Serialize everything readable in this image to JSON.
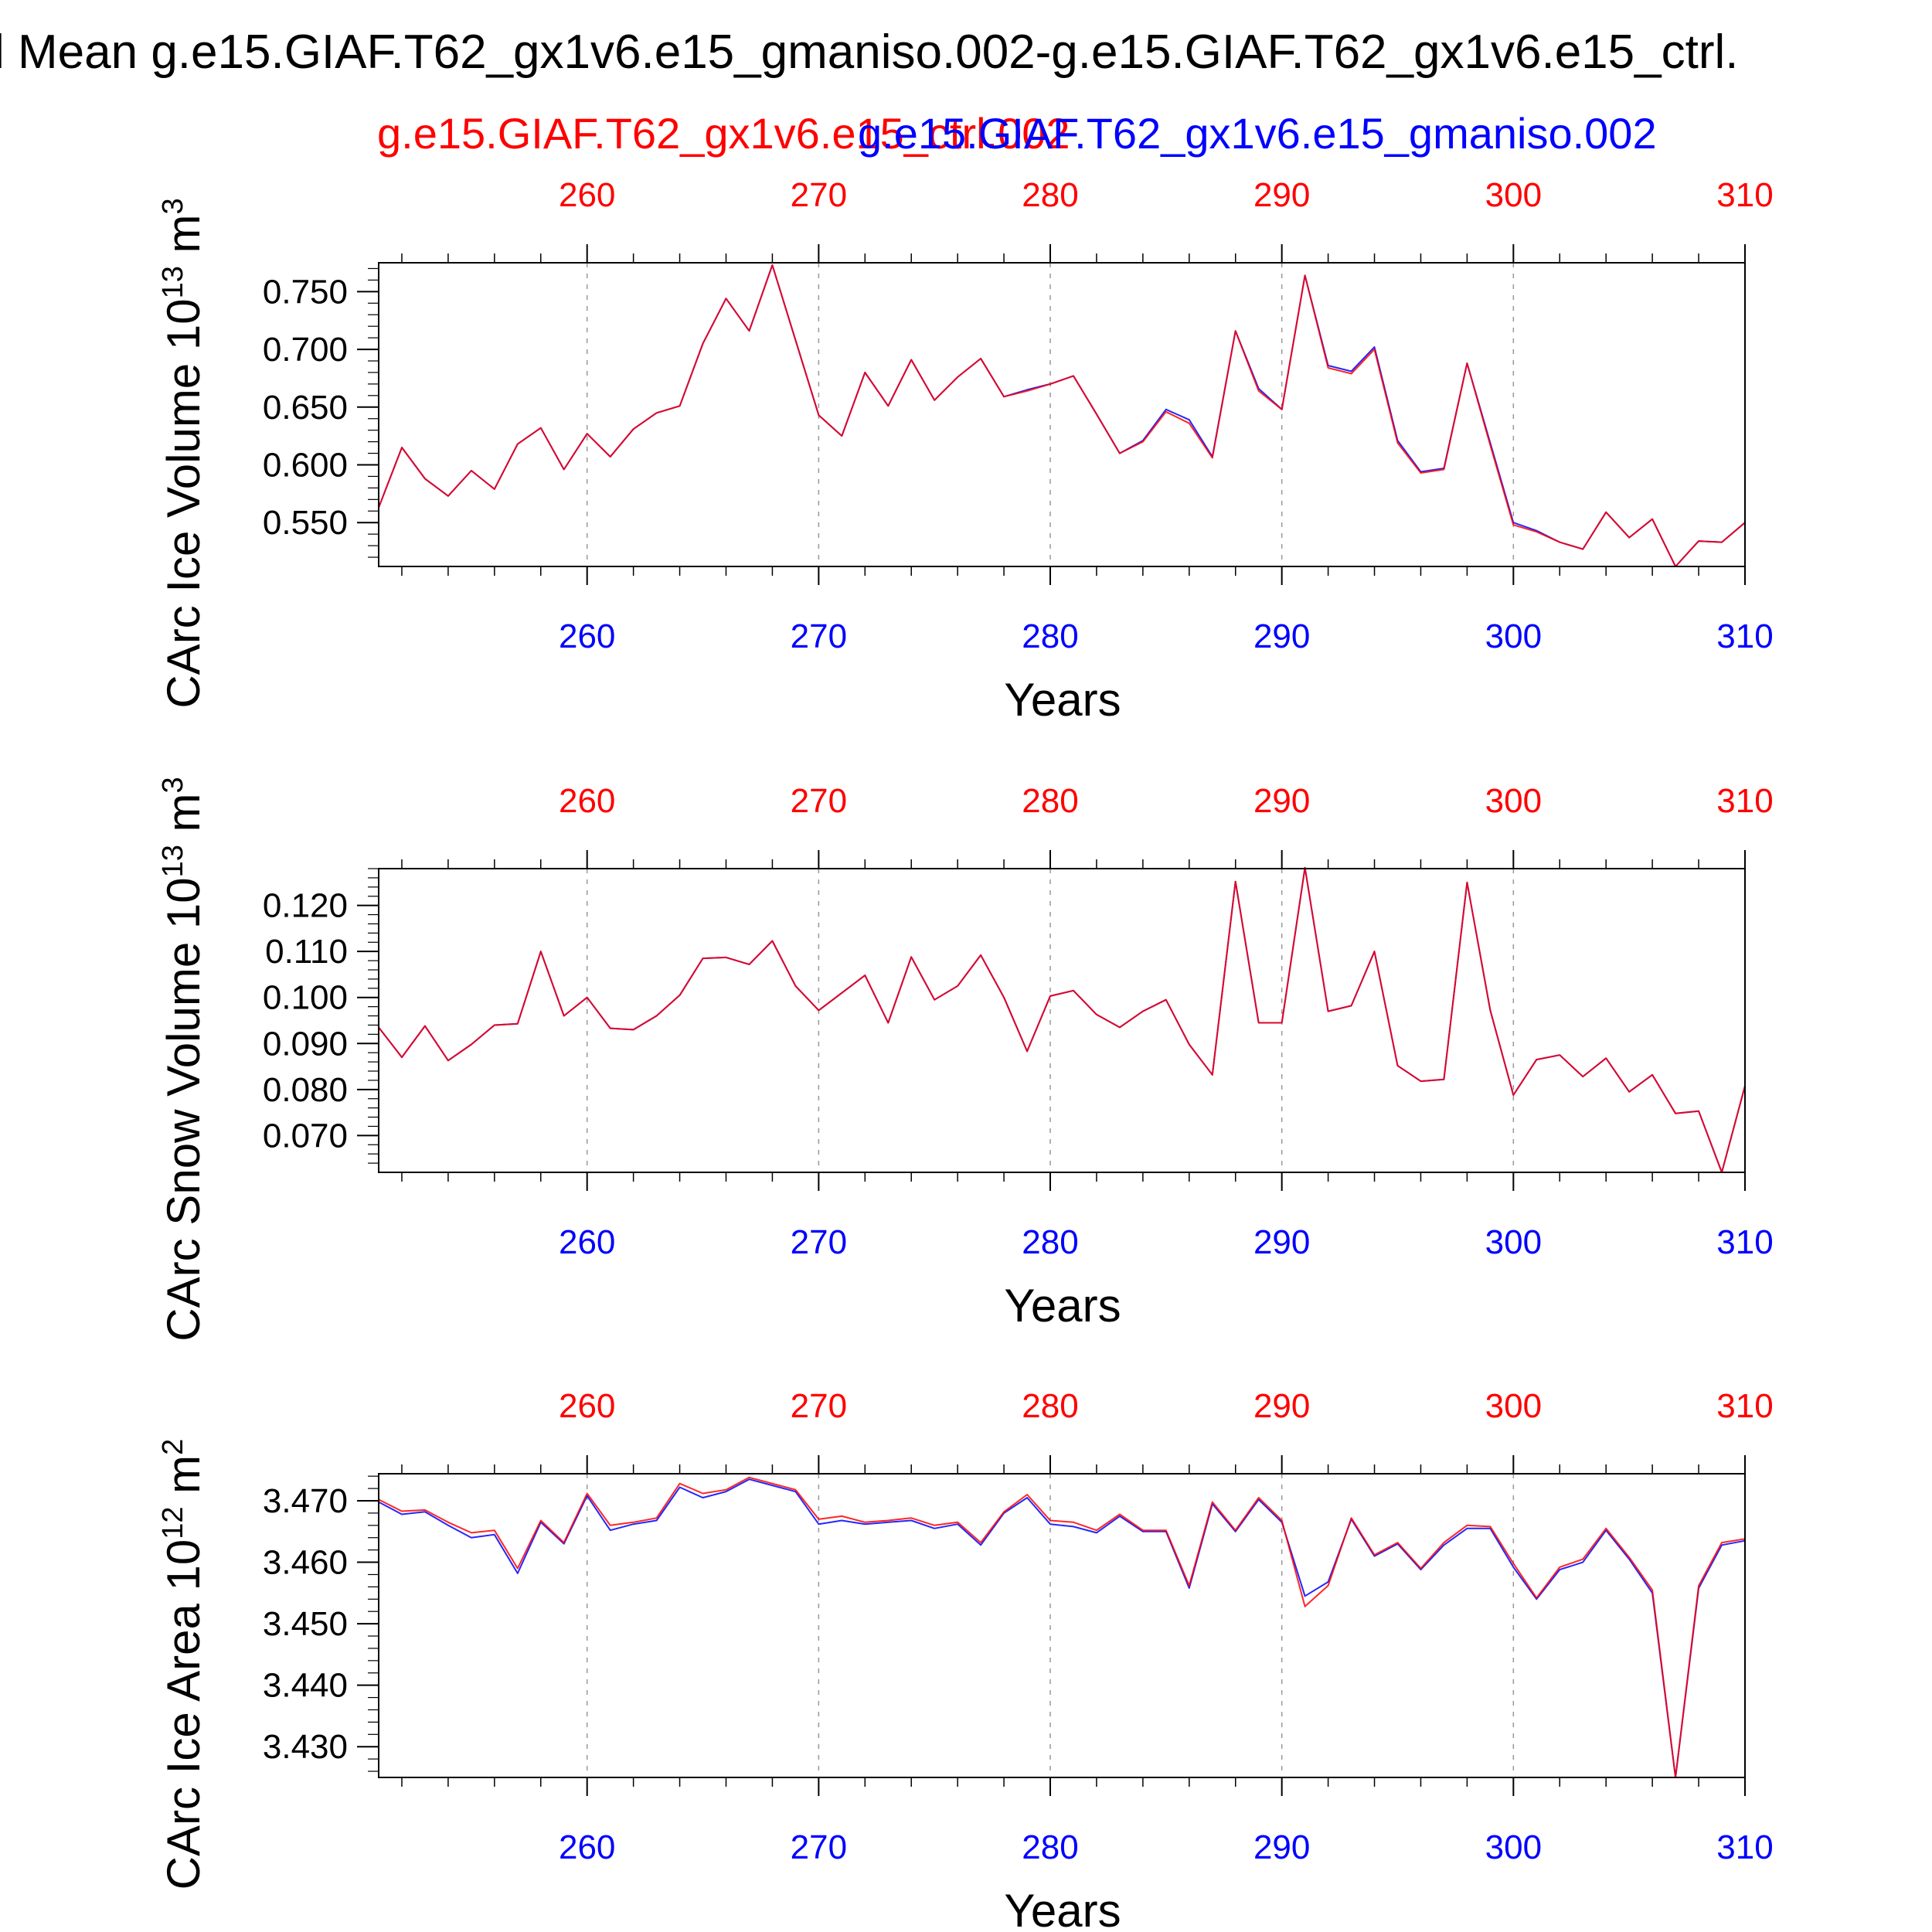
{
  "title": "l Mean g.e15.GIAF.T62_gx1v6.e15_gmaniso.002-g.e15.GIAF.T62_gx1v6.e15_ctrl.",
  "subtitle_ctrl": "g.e15.GIAF.T62_gx1v6.e15_ctrl.002",
  "subtitle_test": "g.e15.GIAF.T62_gx1v6.e15_gmaniso.002",
  "colors": {
    "ctrl": "#ff0000",
    "test": "#0000ff",
    "axis": "#000000",
    "grid": "#999999"
  },
  "chart_data": [
    {
      "type": "line",
      "ylabel": "CArc Ice Volume 10",
      "ylabel_exp": "13",
      "ylabel_unit": " m",
      "ylabel_unit_exp": "3",
      "xlabel": "Years",
      "xlim": [
        251,
        310
      ],
      "ylim": [
        0.512,
        0.775
      ],
      "yticks": [
        0.55,
        0.6,
        0.65,
        0.7,
        0.75
      ],
      "ytick_labels": [
        "0.550",
        "0.600",
        "0.650",
        "0.700",
        "0.750"
      ],
      "xticks_top": [
        "260",
        "270",
        "280",
        "290",
        "300",
        "310"
      ],
      "xticks_bottom": [
        "260",
        "270",
        "280",
        "290",
        "300",
        "310"
      ],
      "x": [
        251,
        252,
        253,
        254,
        255,
        256,
        257,
        258,
        259,
        260,
        261,
        262,
        263,
        264,
        265,
        266,
        267,
        268,
        269,
        270,
        271,
        272,
        273,
        274,
        275,
        276,
        277,
        278,
        279,
        280,
        281,
        282,
        283,
        284,
        285,
        286,
        287,
        288,
        289,
        290,
        291,
        292,
        293,
        294,
        295,
        296,
        297,
        298,
        299,
        300,
        301,
        302,
        303,
        304,
        305,
        306,
        307,
        308,
        309,
        310
      ],
      "series": [
        {
          "name": "g.e15.GIAF.T62_gx1v6.e15_ctrl.002",
          "color": "#ff0000",
          "values": [
            0.563,
            0.615,
            0.588,
            0.573,
            0.595,
            0.579,
            0.618,
            0.632,
            0.596,
            0.627,
            0.607,
            0.631,
            0.645,
            0.651,
            0.705,
            0.744,
            0.716,
            0.773,
            0.708,
            0.643,
            0.625,
            0.68,
            0.651,
            0.691,
            0.656,
            0.676,
            0.692,
            0.659,
            0.664,
            0.67,
            0.677,
            0.644,
            0.61,
            0.62,
            0.646,
            0.636,
            0.606,
            0.716,
            0.664,
            0.648,
            0.764,
            0.684,
            0.679,
            0.7,
            0.619,
            0.593,
            0.596,
            0.688,
            0.617,
            0.548,
            0.542,
            0.533,
            0.527,
            0.559,
            0.537,
            0.553,
            0.512,
            0.534,
            0.533,
            0.55
          ]
        },
        {
          "name": "g.e15.GIAF.T62_gx1v6.e15_gmaniso.002",
          "color": "#0000ff",
          "values": [
            0.563,
            0.615,
            0.588,
            0.573,
            0.595,
            0.579,
            0.618,
            0.632,
            0.596,
            0.627,
            0.607,
            0.631,
            0.645,
            0.651,
            0.705,
            0.744,
            0.716,
            0.773,
            0.708,
            0.643,
            0.625,
            0.68,
            0.651,
            0.691,
            0.656,
            0.676,
            0.692,
            0.659,
            0.665,
            0.67,
            0.677,
            0.644,
            0.61,
            0.621,
            0.648,
            0.639,
            0.607,
            0.716,
            0.666,
            0.648,
            0.764,
            0.686,
            0.681,
            0.702,
            0.621,
            0.594,
            0.597,
            0.688,
            0.619,
            0.55,
            0.543,
            0.533,
            0.527,
            0.559,
            0.537,
            0.553,
            0.512,
            0.534,
            0.533,
            0.55
          ]
        }
      ]
    },
    {
      "type": "line",
      "ylabel": "CArc Snow Volume 10",
      "ylabel_exp": "13",
      "ylabel_unit": " m",
      "ylabel_unit_exp": "3",
      "xlabel": "Years",
      "xlim": [
        251,
        310
      ],
      "ylim": [
        0.062,
        0.128
      ],
      "yticks": [
        0.07,
        0.08,
        0.09,
        0.1,
        0.11,
        0.12
      ],
      "ytick_labels": [
        "0.070",
        "0.080",
        "0.090",
        "0.100",
        "0.110",
        "0.120"
      ],
      "xticks_top": [
        "260",
        "270",
        "280",
        "290",
        "300",
        "310"
      ],
      "xticks_bottom": [
        "260",
        "270",
        "280",
        "290",
        "300",
        "310"
      ],
      "x": [
        251,
        252,
        253,
        254,
        255,
        256,
        257,
        258,
        259,
        260,
        261,
        262,
        263,
        264,
        265,
        266,
        267,
        268,
        269,
        270,
        271,
        272,
        273,
        274,
        275,
        276,
        277,
        278,
        279,
        280,
        281,
        282,
        283,
        284,
        285,
        286,
        287,
        288,
        289,
        290,
        291,
        292,
        293,
        294,
        295,
        296,
        297,
        298,
        299,
        300,
        301,
        302,
        303,
        304,
        305,
        306,
        307,
        308,
        309,
        310
      ],
      "series": [
        {
          "name": "g.e15.GIAF.T62_gx1v6.e15_ctrl.002",
          "color": "#ff0000",
          "values": [
            0.0935,
            0.087,
            0.0938,
            0.0863,
            0.0898,
            0.094,
            0.0943,
            0.11,
            0.096,
            0.1,
            0.0933,
            0.093,
            0.096,
            0.1005,
            0.1085,
            0.1087,
            0.1072,
            0.1123,
            0.1025,
            0.0972,
            0.101,
            0.1048,
            0.0945,
            0.1088,
            0.0995,
            0.1025,
            0.1092,
            0.1,
            0.0883,
            0.1003,
            0.1015,
            0.0963,
            0.0935,
            0.097,
            0.0995,
            0.0898,
            0.0832,
            0.1252,
            0.0945,
            0.0945,
            0.1282,
            0.097,
            0.0982,
            0.11,
            0.0852,
            0.0818,
            0.0822,
            0.125,
            0.0972,
            0.0788,
            0.0865,
            0.0875,
            0.0828,
            0.0868,
            0.0795,
            0.0832,
            0.0748,
            0.0753,
            0.062,
            0.0808
          ]
        },
        {
          "name": "g.e15.GIAF.T62_gx1v6.e15_gmaniso.002",
          "color": "#0000ff",
          "values": [
            0.0935,
            0.087,
            0.0938,
            0.0863,
            0.0898,
            0.094,
            0.0943,
            0.11,
            0.096,
            0.1,
            0.0933,
            0.093,
            0.096,
            0.1005,
            0.1085,
            0.1087,
            0.1072,
            0.1123,
            0.1025,
            0.0972,
            0.101,
            0.1048,
            0.0945,
            0.1088,
            0.0995,
            0.1025,
            0.1092,
            0.1,
            0.0883,
            0.1003,
            0.1015,
            0.0963,
            0.0935,
            0.097,
            0.0995,
            0.0898,
            0.0832,
            0.1252,
            0.0945,
            0.0945,
            0.1282,
            0.097,
            0.0982,
            0.11,
            0.0852,
            0.0818,
            0.0822,
            0.125,
            0.0972,
            0.0788,
            0.0865,
            0.0875,
            0.0828,
            0.0868,
            0.0795,
            0.0832,
            0.0748,
            0.0753,
            0.062,
            0.0808
          ]
        }
      ]
    },
    {
      "type": "line",
      "ylabel": "CArc Ice Area 10",
      "ylabel_exp": "12",
      "ylabel_unit": " m",
      "ylabel_unit_exp": "2",
      "xlabel": "Years",
      "xlim": [
        251,
        310
      ],
      "ylim": [
        3.425,
        3.4744
      ],
      "yticks": [
        3.43,
        3.44,
        3.45,
        3.46,
        3.47
      ],
      "ytick_labels": [
        "3.430",
        "3.440",
        "3.450",
        "3.460",
        "3.470"
      ],
      "xticks_top": [
        "260",
        "270",
        "280",
        "290",
        "300",
        "310"
      ],
      "xticks_bottom": [
        "260",
        "270",
        "280",
        "290",
        "300",
        "310"
      ],
      "x": [
        251,
        252,
        253,
        254,
        255,
        256,
        257,
        258,
        259,
        260,
        261,
        262,
        263,
        264,
        265,
        266,
        267,
        268,
        269,
        270,
        271,
        272,
        273,
        274,
        275,
        276,
        277,
        278,
        279,
        280,
        281,
        282,
        283,
        284,
        285,
        286,
        287,
        288,
        289,
        290,
        291,
        292,
        293,
        294,
        295,
        296,
        297,
        298,
        299,
        300,
        301,
        302,
        303,
        304,
        305,
        306,
        307,
        308,
        309,
        310
      ],
      "series": [
        {
          "name": "g.e15.GIAF.T62_gx1v6.e15_ctrl.002",
          "color": "#ff0000",
          "values": [
            3.4702,
            3.4683,
            3.4685,
            3.4665,
            3.4648,
            3.4652,
            3.459,
            3.4668,
            3.4632,
            3.4712,
            3.466,
            3.4665,
            3.4672,
            3.4728,
            3.4712,
            3.4718,
            3.4738,
            3.4728,
            3.4718,
            3.467,
            3.4675,
            3.4665,
            3.4668,
            3.4672,
            3.466,
            3.4665,
            3.4632,
            3.4682,
            3.471,
            3.4668,
            3.4665,
            3.4652,
            3.4678,
            3.4652,
            3.4652,
            3.4562,
            3.4698,
            3.4652,
            3.4705,
            3.4668,
            3.4528,
            3.4562,
            3.4672,
            3.4612,
            3.4632,
            3.459,
            3.4632,
            3.466,
            3.4658,
            3.4598,
            3.4542,
            3.4592,
            3.4605,
            3.4655,
            3.4608,
            3.4555,
            3.425,
            3.4562,
            3.4632,
            3.4638
          ]
        },
        {
          "name": "g.e15.GIAF.T62_gx1v6.e15_gmaniso.002",
          "color": "#0000ff",
          "values": [
            3.4698,
            3.4678,
            3.4682,
            3.466,
            3.464,
            3.4645,
            3.4582,
            3.4665,
            3.463,
            3.4708,
            3.4652,
            3.4662,
            3.4668,
            3.4722,
            3.4705,
            3.4715,
            3.4735,
            3.4725,
            3.4715,
            3.4662,
            3.4668,
            3.4662,
            3.4665,
            3.4668,
            3.4655,
            3.4662,
            3.4628,
            3.468,
            3.4705,
            3.4662,
            3.4658,
            3.4648,
            3.4675,
            3.465,
            3.465,
            3.4558,
            3.4695,
            3.465,
            3.4702,
            3.4665,
            3.4545,
            3.4568,
            3.467,
            3.461,
            3.463,
            3.4588,
            3.4628,
            3.4655,
            3.4655,
            3.4592,
            3.454,
            3.4588,
            3.46,
            3.4652,
            3.4605,
            3.455,
            3.425,
            3.4558,
            3.4628,
            3.4635
          ]
        }
      ]
    }
  ]
}
